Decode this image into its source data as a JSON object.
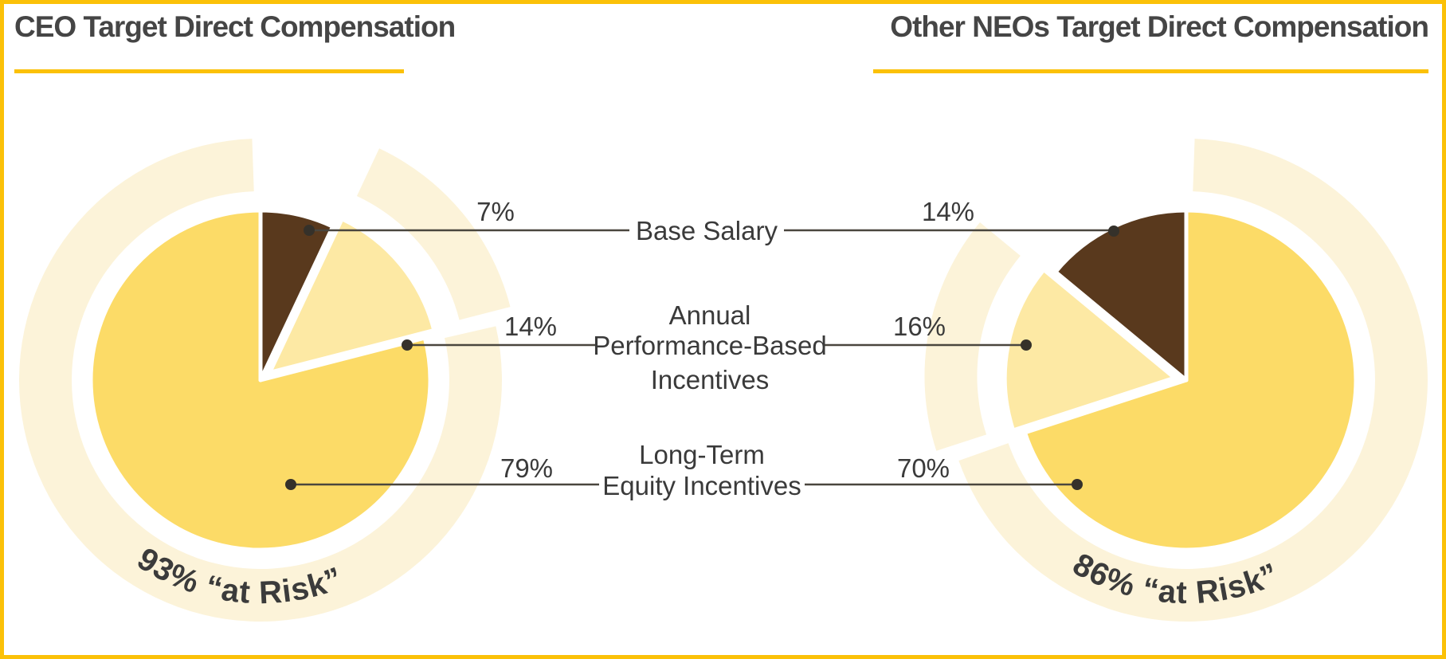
{
  "page": {
    "background": "#FFFFFF",
    "border_color": "#FBC108"
  },
  "titles": {
    "left": "CEO Target Direct Compensation",
    "right": "Other NEOs Target Direct Compensation"
  },
  "colors": {
    "base_salary": "#59391D",
    "annual_incentives": "#FDE9A4",
    "long_term_equity": "#FCDB67",
    "at_risk_ring": "#FCF3D9",
    "accent_gold": "#FBC108",
    "text_dark": "#3A3A3A",
    "leader_line": "#4A463E",
    "dot": "#35312A"
  },
  "center_labels": {
    "row1": "Base Salary",
    "row2_line1": "Annual",
    "row2_line2": "Performance-Based",
    "row2_line3": "Incentives",
    "row3_line1": "Long-Term",
    "row3_line2": "Equity Incentives"
  },
  "ceo": {
    "base_salary_pct": "7%",
    "annual_pct": "14%",
    "long_term_pct": "79%",
    "at_risk": "93% “at Risk”"
  },
  "neo": {
    "base_salary_pct": "14%",
    "annual_pct": "16%",
    "long_term_pct": "70%",
    "at_risk": "86% “at Risk”"
  },
  "chart_data": [
    {
      "type": "pie",
      "title": "CEO Target Direct Compensation",
      "labels": [
        "Base Salary",
        "Annual Performance-Based Incentives",
        "Long-Term Equity Incentives"
      ],
      "values": [
        7,
        14,
        79
      ],
      "colors": [
        "#59391D",
        "#FDE9A4",
        "#FCDB67"
      ],
      "annotation": "93% “at Risk”",
      "at_risk_pct": 93,
      "direction": "clockwise",
      "exploded_slice": "Annual Performance-Based Incentives",
      "legend_position": "center-column-shared-labels"
    },
    {
      "type": "pie",
      "title": "Other NEOs Target Direct Compensation",
      "labels": [
        "Base Salary",
        "Annual Performance-Based Incentives",
        "Long-Term Equity Incentives"
      ],
      "values": [
        14,
        16,
        70
      ],
      "colors": [
        "#59391D",
        "#FDE9A4",
        "#FCDB67"
      ],
      "annotation": "86% “at Risk”",
      "at_risk_pct": 86,
      "direction": "counterclockwise",
      "exploded_slice": "Annual Performance-Based Incentives",
      "legend_position": "center-column-shared-labels"
    }
  ]
}
